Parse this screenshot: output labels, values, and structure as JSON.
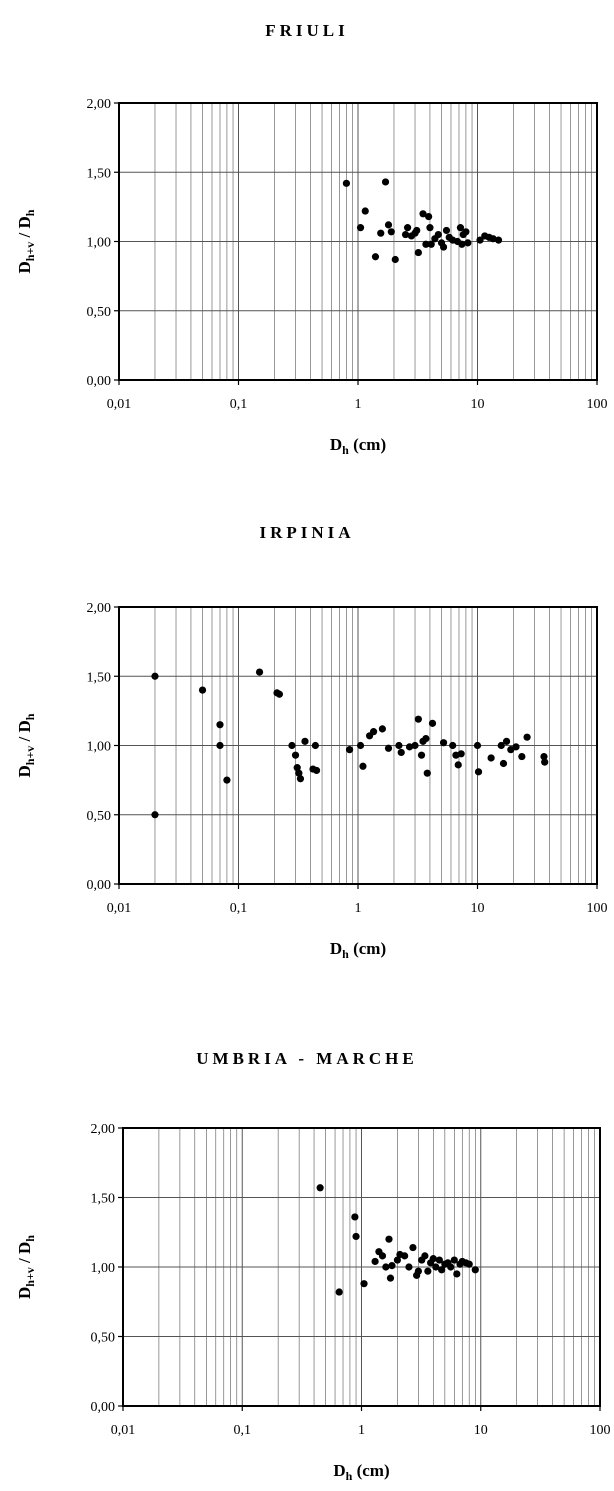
{
  "chart_data": [
    {
      "type": "scatter",
      "title": "FRIULI",
      "xlabel": "D",
      "xlabel_sub": "h",
      "xlabel_unit": " (cm)",
      "ylabel": "D",
      "ylabel_sub": "h+v",
      "ylabel_mid": " / D",
      "ylabel_sub2": "h",
      "x_scale": "log",
      "xlim": [
        0.01,
        100
      ],
      "ylim": [
        0,
        2
      ],
      "x_ticks": [
        "0,01",
        "0,1",
        "1",
        "10",
        "100"
      ],
      "y_ticks": [
        "0,00",
        "0,50",
        "1,00",
        "1,50",
        "2,00"
      ],
      "grid": true,
      "points": [
        [
          0.8,
          1.42
        ],
        [
          1.05,
          1.1
        ],
        [
          1.15,
          1.22
        ],
        [
          1.4,
          0.89
        ],
        [
          1.55,
          1.06
        ],
        [
          1.7,
          1.43
        ],
        [
          1.8,
          1.12
        ],
        [
          1.9,
          1.07
        ],
        [
          2.05,
          0.87
        ],
        [
          2.5,
          1.05
        ],
        [
          2.6,
          1.1
        ],
        [
          2.8,
          1.04
        ],
        [
          3.0,
          1.06
        ],
        [
          3.1,
          1.08
        ],
        [
          3.2,
          0.92
        ],
        [
          3.5,
          1.2
        ],
        [
          3.7,
          0.98
        ],
        [
          3.9,
          1.18
        ],
        [
          4.0,
          1.1
        ],
        [
          4.1,
          0.98
        ],
        [
          4.4,
          1.02
        ],
        [
          4.7,
          1.05
        ],
        [
          5.0,
          0.99
        ],
        [
          5.2,
          0.96
        ],
        [
          5.5,
          1.08
        ],
        [
          5.8,
          1.03
        ],
        [
          6.2,
          1.01
        ],
        [
          6.8,
          1.0
        ],
        [
          7.2,
          1.1
        ],
        [
          7.4,
          0.98
        ],
        [
          7.6,
          1.05
        ],
        [
          8.0,
          1.07
        ],
        [
          8.3,
          0.99
        ],
        [
          10.5,
          1.01
        ],
        [
          11.5,
          1.04
        ],
        [
          12.5,
          1.03
        ],
        [
          13.5,
          1.02
        ],
        [
          15.0,
          1.01
        ]
      ]
    },
    {
      "type": "scatter",
      "title": "IRPINIA",
      "xlabel": "D",
      "xlabel_sub": "h",
      "xlabel_unit": " (cm)",
      "ylabel": "D",
      "ylabel_sub": "h+v",
      "ylabel_mid": " / D",
      "ylabel_sub2": "h",
      "x_scale": "log",
      "xlim": [
        0.01,
        100
      ],
      "ylim": [
        0,
        2
      ],
      "x_ticks": [
        "0,01",
        "0,1",
        "1",
        "10",
        "100"
      ],
      "y_ticks": [
        "0,00",
        "0,50",
        "1,00",
        "1,50",
        "2,00"
      ],
      "grid": true,
      "points": [
        [
          0.02,
          1.5
        ],
        [
          0.02,
          0.5
        ],
        [
          0.05,
          1.4
        ],
        [
          0.07,
          1.15
        ],
        [
          0.07,
          1.0
        ],
        [
          0.08,
          0.75
        ],
        [
          0.15,
          1.53
        ],
        [
          0.21,
          1.38
        ],
        [
          0.22,
          1.37
        ],
        [
          0.28,
          1.0
        ],
        [
          0.3,
          0.93
        ],
        [
          0.31,
          0.84
        ],
        [
          0.32,
          0.8
        ],
        [
          0.33,
          0.76
        ],
        [
          0.36,
          1.03
        ],
        [
          0.42,
          0.83
        ],
        [
          0.44,
          1.0
        ],
        [
          0.45,
          0.82
        ],
        [
          0.85,
          0.97
        ],
        [
          1.05,
          1.0
        ],
        [
          1.1,
          0.85
        ],
        [
          1.25,
          1.07
        ],
        [
          1.35,
          1.1
        ],
        [
          1.6,
          1.12
        ],
        [
          1.8,
          0.98
        ],
        [
          2.2,
          1.0
        ],
        [
          2.3,
          0.95
        ],
        [
          2.7,
          0.99
        ],
        [
          3.0,
          1.0
        ],
        [
          3.2,
          1.19
        ],
        [
          3.4,
          0.93
        ],
        [
          3.5,
          1.03
        ],
        [
          3.7,
          1.05
        ],
        [
          3.8,
          0.8
        ],
        [
          4.2,
          1.16
        ],
        [
          5.2,
          1.02
        ],
        [
          6.2,
          1.0
        ],
        [
          6.6,
          0.93
        ],
        [
          6.9,
          0.86
        ],
        [
          7.3,
          0.94
        ],
        [
          10.0,
          1.0
        ],
        [
          10.2,
          0.81
        ],
        [
          13.0,
          0.91
        ],
        [
          15.8,
          1.0
        ],
        [
          16.5,
          0.87
        ],
        [
          17.5,
          1.03
        ],
        [
          19.0,
          0.97
        ],
        [
          21.0,
          0.99
        ],
        [
          23.5,
          0.92
        ],
        [
          26.0,
          1.06
        ],
        [
          36.0,
          0.92
        ],
        [
          36.5,
          0.88
        ]
      ]
    },
    {
      "type": "scatter",
      "title": "UMBRIA - MARCHE",
      "xlabel": "D",
      "xlabel_sub": "h",
      "xlabel_unit": " (cm)",
      "ylabel": "D",
      "ylabel_sub": "h+v",
      "ylabel_mid": " / D",
      "ylabel_sub2": "h",
      "x_scale": "log",
      "xlim": [
        0.01,
        100
      ],
      "ylim": [
        0,
        2
      ],
      "x_ticks": [
        "0,01",
        "0,1",
        "1",
        "10",
        "100"
      ],
      "y_ticks": [
        "0,00",
        "0,50",
        "1,00",
        "1,50",
        "2,00"
      ],
      "grid": true,
      "points": [
        [
          0.45,
          1.57
        ],
        [
          0.65,
          0.82
        ],
        [
          0.88,
          1.36
        ],
        [
          0.9,
          1.22
        ],
        [
          1.05,
          0.88
        ],
        [
          1.3,
          1.04
        ],
        [
          1.4,
          1.11
        ],
        [
          1.5,
          1.08
        ],
        [
          1.6,
          1.0
        ],
        [
          1.7,
          1.2
        ],
        [
          1.75,
          0.92
        ],
        [
          1.8,
          1.01
        ],
        [
          2.0,
          1.05
        ],
        [
          2.1,
          1.09
        ],
        [
          2.3,
          1.08
        ],
        [
          2.5,
          1.0
        ],
        [
          2.7,
          1.14
        ],
        [
          2.9,
          0.94
        ],
        [
          3.0,
          0.97
        ],
        [
          3.2,
          1.05
        ],
        [
          3.4,
          1.08
        ],
        [
          3.6,
          0.97
        ],
        [
          3.8,
          1.03
        ],
        [
          4.0,
          1.06
        ],
        [
          4.2,
          1.0
        ],
        [
          4.5,
          1.05
        ],
        [
          4.7,
          0.98
        ],
        [
          5.0,
          1.02
        ],
        [
          5.3,
          1.03
        ],
        [
          5.6,
          1.0
        ],
        [
          6.0,
          1.05
        ],
        [
          6.3,
          0.95
        ],
        [
          6.7,
          1.02
        ],
        [
          7.0,
          1.04
        ],
        [
          7.5,
          1.03
        ],
        [
          8.0,
          1.02
        ],
        [
          9.0,
          0.98
        ]
      ]
    }
  ]
}
